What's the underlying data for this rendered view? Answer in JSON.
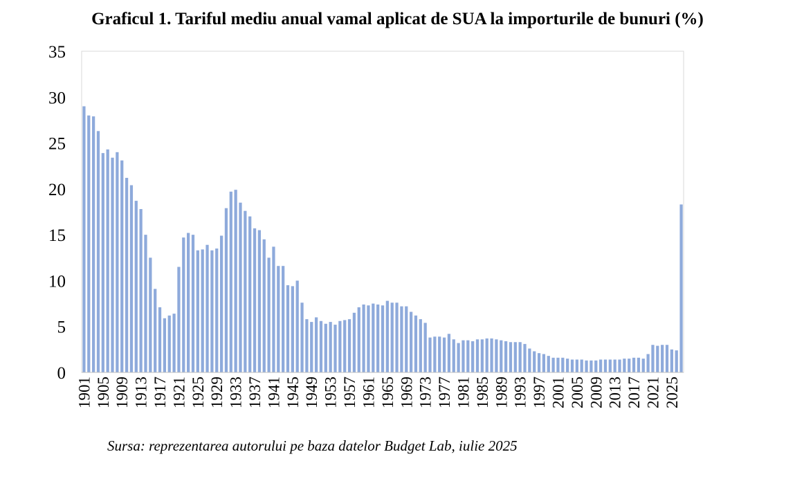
{
  "title": "Graficul 1. Tariful mediu anual vamal aplicat de SUA la importurile de bunuri (%)",
  "source": "Sursa: reprezentarea autorului pe baza datelor Budget Lab, iulie 2025",
  "colors": {
    "bar": "#8eaadb",
    "axis": "#bfbfbf",
    "frame": "#d9d9d9"
  },
  "chart_data": {
    "type": "bar",
    "x_start": 1901,
    "ylim": [
      0,
      35
    ],
    "yticks": [
      0,
      5,
      10,
      15,
      20,
      25,
      30,
      35
    ],
    "xticks": [
      "1901",
      "1905",
      "1909",
      "1913",
      "1917",
      "1921",
      "1925",
      "1929",
      "1933",
      "1937",
      "1941",
      "1945",
      "1949",
      "1953",
      "1957",
      "1961",
      "1965",
      "1969",
      "1973",
      "1977",
      "1981",
      "1985",
      "1989",
      "1993",
      "1997",
      "2001",
      "2005",
      "2009",
      "2013",
      "2017",
      "2021",
      "2025"
    ],
    "grid": false,
    "values": [
      29.0,
      28.0,
      27.9,
      26.3,
      23.9,
      24.3,
      23.4,
      24.0,
      23.1,
      21.2,
      20.4,
      18.7,
      17.8,
      15.0,
      12.5,
      9.1,
      7.1,
      5.9,
      6.2,
      6.4,
      11.5,
      14.7,
      15.2,
      15.0,
      13.3,
      13.4,
      13.9,
      13.3,
      13.5,
      14.9,
      17.9,
      19.7,
      19.9,
      18.5,
      17.6,
      17.0,
      15.7,
      15.5,
      14.5,
      12.5,
      13.7,
      11.6,
      11.6,
      9.5,
      9.4,
      10.0,
      7.6,
      5.8,
      5.5,
      6.0,
      5.6,
      5.3,
      5.5,
      5.2,
      5.6,
      5.7,
      5.8,
      6.5,
      7.1,
      7.4,
      7.3,
      7.5,
      7.4,
      7.3,
      7.8,
      7.6,
      7.6,
      7.2,
      7.2,
      6.6,
      6.2,
      5.8,
      5.4,
      3.8,
      3.9,
      3.9,
      3.8,
      4.2,
      3.6,
      3.2,
      3.5,
      3.5,
      3.4,
      3.6,
      3.6,
      3.7,
      3.7,
      3.6,
      3.5,
      3.4,
      3.3,
      3.3,
      3.3,
      3.1,
      2.6,
      2.3,
      2.1,
      2.0,
      1.8,
      1.6,
      1.6,
      1.6,
      1.5,
      1.4,
      1.4,
      1.4,
      1.3,
      1.3,
      1.3,
      1.4,
      1.4,
      1.4,
      1.4,
      1.4,
      1.5,
      1.5,
      1.6,
      1.6,
      1.5,
      2.0,
      3.0,
      2.9,
      3.0,
      3.0,
      2.5,
      2.4,
      18.3
    ]
  }
}
